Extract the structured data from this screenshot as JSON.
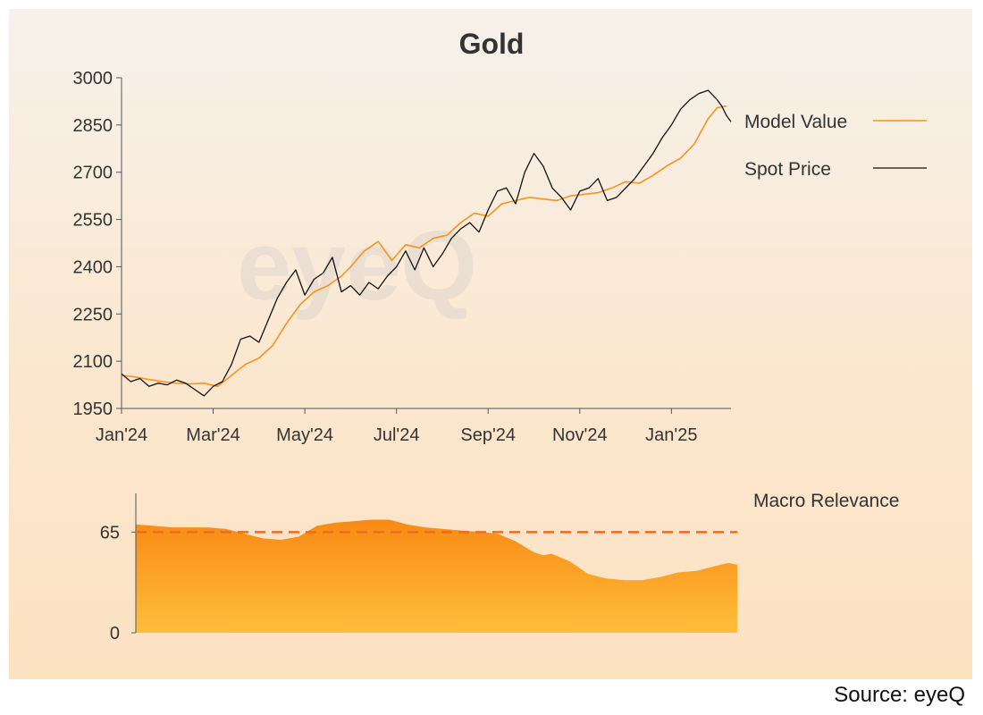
{
  "source": "Source: eyeQ",
  "watermark": "eyeQ",
  "colors": {
    "model": "#f7931e",
    "spot": "#111111",
    "axis": "#555555",
    "threshold": "#f26a1b",
    "area_top": "#f98a14",
    "area_bottom": "#ffbe3b"
  },
  "chart_data": [
    {
      "type": "line",
      "title": "Gold",
      "xlabel": "",
      "ylabel": "",
      "ylim": [
        1950,
        3000
      ],
      "yticks": [
        1950,
        2100,
        2250,
        2400,
        2550,
        2700,
        2850,
        3000
      ],
      "xticks": [
        {
          "label": "Jan'24",
          "t": 0
        },
        {
          "label": "Mar'24",
          "t": 2
        },
        {
          "label": "May'24",
          "t": 4
        },
        {
          "label": "Jul'24",
          "t": 6
        },
        {
          "label": "Sep'24",
          "t": 8
        },
        {
          "label": "Nov'24",
          "t": 10
        },
        {
          "label": "Jan'25",
          "t": 12
        }
      ],
      "xlim": [
        0,
        13.3
      ],
      "legend_position": "right",
      "series": [
        {
          "name": "Model Value",
          "color": "#f7931e",
          "t": [
            0,
            0.3,
            0.6,
            0.9,
            1.2,
            1.5,
            1.8,
            2.1,
            2.4,
            2.7,
            3.0,
            3.3,
            3.6,
            3.9,
            4.2,
            4.5,
            4.8,
            5.0,
            5.3,
            5.6,
            5.9,
            6.2,
            6.5,
            6.8,
            7.1,
            7.4,
            7.7,
            8.0,
            8.3,
            8.6,
            8.9,
            9.2,
            9.5,
            9.8,
            10.1,
            10.4,
            10.7,
            11.0,
            11.3,
            11.6,
            11.9,
            12.2,
            12.5,
            12.8,
            13.0,
            13.2
          ],
          "values": [
            2055,
            2050,
            2042,
            2035,
            2030,
            2028,
            2030,
            2020,
            2055,
            2090,
            2110,
            2150,
            2220,
            2280,
            2320,
            2340,
            2370,
            2400,
            2450,
            2480,
            2420,
            2470,
            2460,
            2490,
            2500,
            2540,
            2570,
            2560,
            2600,
            2610,
            2620,
            2615,
            2610,
            2625,
            2630,
            2635,
            2650,
            2670,
            2665,
            2690,
            2720,
            2745,
            2790,
            2870,
            2905,
            2910
          ]
        },
        {
          "name": "Spot Price",
          "color": "#111111",
          "t": [
            0,
            0.2,
            0.4,
            0.6,
            0.8,
            1.0,
            1.2,
            1.4,
            1.6,
            1.8,
            2.0,
            2.2,
            2.4,
            2.6,
            2.8,
            3.0,
            3.2,
            3.4,
            3.6,
            3.8,
            4.0,
            4.2,
            4.4,
            4.6,
            4.8,
            5.0,
            5.2,
            5.4,
            5.6,
            5.8,
            6.0,
            6.2,
            6.4,
            6.6,
            6.8,
            7.0,
            7.2,
            7.4,
            7.6,
            7.8,
            8.0,
            8.2,
            8.4,
            8.6,
            8.8,
            9.0,
            9.2,
            9.4,
            9.6,
            9.8,
            10.0,
            10.2,
            10.4,
            10.6,
            10.8,
            11.0,
            11.2,
            11.4,
            11.6,
            11.8,
            12.0,
            12.2,
            12.4,
            12.6,
            12.8,
            13.0,
            13.1,
            13.2,
            13.3
          ],
          "values": [
            2060,
            2035,
            2045,
            2020,
            2030,
            2025,
            2040,
            2030,
            2010,
            1990,
            2020,
            2035,
            2090,
            2170,
            2180,
            2160,
            2230,
            2300,
            2350,
            2390,
            2310,
            2360,
            2380,
            2430,
            2320,
            2340,
            2310,
            2350,
            2330,
            2370,
            2400,
            2450,
            2390,
            2460,
            2400,
            2440,
            2490,
            2520,
            2540,
            2510,
            2580,
            2640,
            2650,
            2600,
            2700,
            2760,
            2720,
            2650,
            2620,
            2580,
            2640,
            2650,
            2680,
            2610,
            2620,
            2650,
            2680,
            2720,
            2760,
            2810,
            2850,
            2900,
            2930,
            2950,
            2960,
            2930,
            2910,
            2880,
            2860
          ]
        }
      ]
    },
    {
      "type": "area",
      "title": "Macro Relevance",
      "ylim": [
        0,
        90
      ],
      "yticks": [
        0,
        65
      ],
      "threshold": 65,
      "xlim": [
        0,
        13.3
      ],
      "t": [
        0,
        0.4,
        0.8,
        1.2,
        1.6,
        2.0,
        2.4,
        2.8,
        3.2,
        3.6,
        4.0,
        4.4,
        4.8,
        5.2,
        5.6,
        6.0,
        6.4,
        6.8,
        7.2,
        7.6,
        8.0,
        8.4,
        8.8,
        9.0,
        9.2,
        9.6,
        10.0,
        10.4,
        10.8,
        11.2,
        11.6,
        12.0,
        12.4,
        12.8,
        13.1,
        13.3
      ],
      "values": [
        70,
        69,
        68,
        68,
        68,
        67,
        64,
        61,
        60,
        62,
        69,
        71,
        72,
        73,
        73,
        70,
        68,
        67,
        66,
        65,
        64,
        59,
        52,
        50,
        51,
        46,
        38,
        35,
        34,
        34,
        36,
        39,
        40,
        43,
        45,
        44
      ]
    }
  ]
}
